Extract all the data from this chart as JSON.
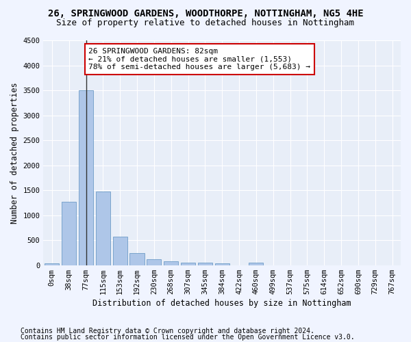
{
  "title1": "26, SPRINGWOOD GARDENS, WOODTHORPE, NOTTINGHAM, NG5 4HE",
  "title2": "Size of property relative to detached houses in Nottingham",
  "xlabel": "Distribution of detached houses by size in Nottingham",
  "ylabel": "Number of detached properties",
  "bin_labels": [
    "0sqm",
    "38sqm",
    "77sqm",
    "115sqm",
    "153sqm",
    "192sqm",
    "230sqm",
    "268sqm",
    "307sqm",
    "345sqm",
    "384sqm",
    "422sqm",
    "460sqm",
    "499sqm",
    "537sqm",
    "575sqm",
    "614sqm",
    "652sqm",
    "690sqm",
    "729sqm",
    "767sqm"
  ],
  "bar_values": [
    40,
    1270,
    3500,
    1480,
    575,
    240,
    115,
    80,
    55,
    45,
    40,
    0,
    55,
    0,
    0,
    0,
    0,
    0,
    0,
    0,
    0
  ],
  "bar_color": "#aec6e8",
  "bar_edge_color": "#5a8fbf",
  "property_line_bin": 2,
  "annotation_line1": "26 SPRINGWOOD GARDENS: 82sqm",
  "annotation_line2": "← 21% of detached houses are smaller (1,553)",
  "annotation_line3": "78% of semi-detached houses are larger (5,683) →",
  "annotation_box_color": "#ffffff",
  "annotation_box_edge": "#cc0000",
  "ylim": [
    0,
    4500
  ],
  "yticks": [
    0,
    500,
    1000,
    1500,
    2000,
    2500,
    3000,
    3500,
    4000,
    4500
  ],
  "background_color": "#f0f4ff",
  "plot_bg_color": "#e8eef8",
  "grid_color": "#ffffff",
  "footer1": "Contains HM Land Registry data © Crown copyright and database right 2024.",
  "footer2": "Contains public sector information licensed under the Open Government Licence v3.0.",
  "title1_fontsize": 10,
  "title2_fontsize": 9,
  "axis_fontsize": 8.5,
  "tick_fontsize": 7.5,
  "annotation_fontsize": 8,
  "footer_fontsize": 7
}
